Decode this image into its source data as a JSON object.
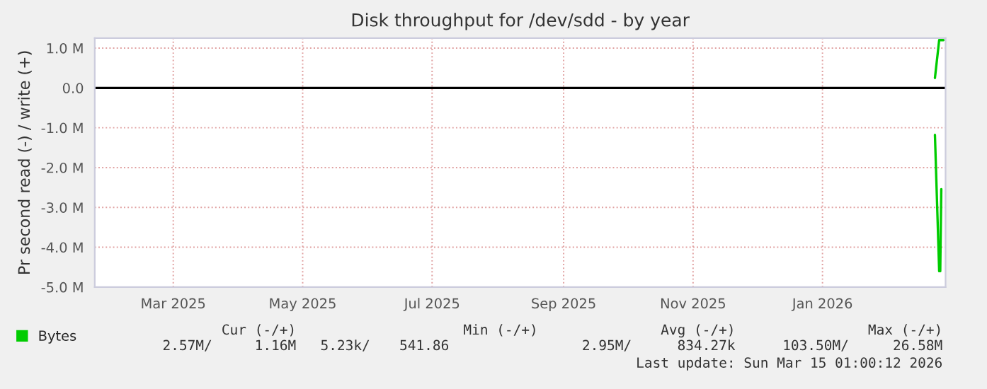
{
  "chart_data": {
    "type": "line",
    "title": "Disk throughput for /dev/sdd - by year",
    "ylabel": "Pr second read (-) / write (+)",
    "series": [
      {
        "name": "Bytes",
        "color": "#00cc00",
        "x": [
          "2026-03-10",
          "2026-03-12",
          "2026-03-14"
        ],
        "values": [
          250000,
          1200000,
          1200000
        ]
      },
      {
        "color": "#00cc00",
        "x": [
          "2026-03-10",
          "2026-03-12",
          "2026-03-12T12:00",
          "2026-03-13"
        ],
        "values": [
          -1180000,
          -4600000,
          -4600000,
          -2540000
        ]
      }
    ],
    "xlim": [
      "2025-02-07",
      "2026-03-15"
    ],
    "xticks": [
      {
        "value": "2025-03-16",
        "label": "Mar 2025"
      },
      {
        "value": "2025-05-16",
        "label": "May 2025"
      },
      {
        "value": "2025-07-16",
        "label": "Jul 2025"
      },
      {
        "value": "2025-09-16",
        "label": "Sep 2025"
      },
      {
        "value": "2025-11-16",
        "label": "Nov 2025"
      },
      {
        "value": "2026-01-16",
        "label": "Jan 2026"
      }
    ],
    "ylim": [
      -5000000,
      1250000
    ],
    "yticks": [
      {
        "value": 1000000,
        "label": "1.0 M"
      },
      {
        "value": 0,
        "label": "0.0"
      },
      {
        "value": -1000000,
        "label": "-1.0 M"
      },
      {
        "value": -2000000,
        "label": "-2.0 M"
      },
      {
        "value": -3000000,
        "label": "-3.0 M"
      },
      {
        "value": -4000000,
        "label": "-4.0 M"
      },
      {
        "value": -5000000,
        "label": "-5.0 M"
      }
    ],
    "ref_lines": [
      {
        "axis": "y",
        "value": 0,
        "color": "#000000"
      }
    ],
    "grid": true,
    "legend": "bottom left",
    "annotations": [
      "Cur (-/+)",
      "Min (-/+)",
      "Avg (-/+)",
      "Max (-/+)",
      "2.57M/",
      "1.16M",
      "5.23k/",
      "541.86",
      "2.95M/",
      "834.27k",
      "103.50M/",
      "26.58M",
      "Last update: Sun Mar 15 01:00:12 2026"
    ]
  }
}
